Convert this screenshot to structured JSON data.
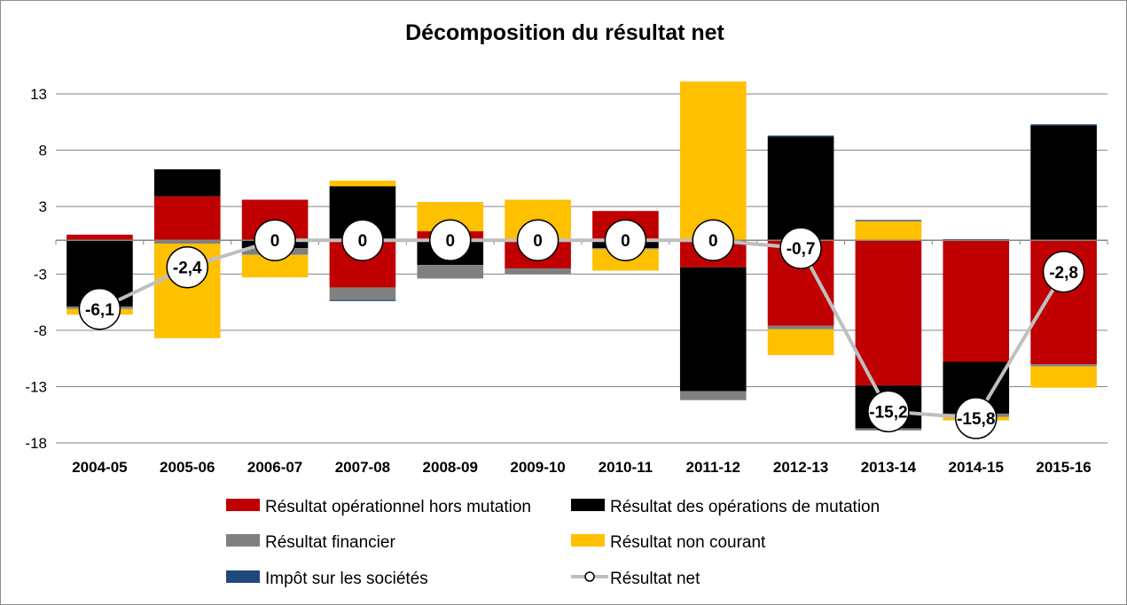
{
  "chart_data": {
    "type": "bar",
    "title": "Décomposition du résultat net",
    "xlabel": "",
    "ylabel": "",
    "ylim": [
      -18,
      15
    ],
    "yticks": [
      13,
      8,
      3,
      -3,
      -8,
      -13,
      -18
    ],
    "grid": true,
    "legend_position": "bottom",
    "categories": [
      "2004-05",
      "2005-06",
      "2006-07",
      "2007-08",
      "2008-09",
      "2009-10",
      "2010-11",
      "2011-12",
      "2012-13",
      "2013-14",
      "2014-15",
      "2015-16"
    ],
    "series": [
      {
        "name": "Résultat opérationnel hors mutation",
        "color": "#c00000",
        "values": [
          0.5,
          3.9,
          3.6,
          -4.2,
          0.8,
          -2.5,
          2.6,
          -2.4,
          -7.6,
          -12.9,
          -10.8,
          -11.0
        ]
      },
      {
        "name": "Résultat des opérations de mutation",
        "color": "#000000",
        "values": [
          -5.9,
          2.4,
          -0.7,
          4.8,
          -2.2,
          0.1,
          -0.7,
          -11.0,
          9.2,
          -3.8,
          -4.6,
          10.2
        ]
      },
      {
        "name": "Résultat financier",
        "color": "#808080",
        "values": [
          -0.2,
          -0.3,
          -0.6,
          -1.1,
          -1.2,
          -0.5,
          -0.1,
          -0.8,
          -0.3,
          -0.2,
          -0.3,
          -0.2
        ]
      },
      {
        "name": "Résultat non courant",
        "color": "#ffc000",
        "values": [
          -0.5,
          -8.4,
          -2.0,
          0.5,
          2.6,
          3.5,
          -1.9,
          14.1,
          -2.3,
          1.7,
          -0.3,
          -1.9
        ]
      },
      {
        "name": "Impôt sur les sociétés",
        "color": "#1f497d",
        "values": [
          0,
          0,
          0,
          -0.1,
          0,
          0,
          0,
          0,
          0.1,
          0.1,
          0.1,
          0.1
        ]
      }
    ],
    "line_series": {
      "name": "Résultat net",
      "color": "#bfbfbf",
      "values": [
        -6.1,
        -2.4,
        0,
        0,
        0,
        0,
        0,
        0,
        -0.7,
        -15.2,
        -15.8,
        -2.8
      ],
      "labels": [
        "-6,1",
        "-2,4",
        "0",
        "0",
        "0",
        "0",
        "0",
        "0",
        "-0,7",
        "-15,2",
        "-15,8",
        "-2,8"
      ]
    },
    "legend_order": [
      "Résultat opérationnel hors mutation",
      "Résultat des opérations de mutation",
      "Résultat financier",
      "Résultat non courant",
      "Impôt sur les sociétés",
      "Résultat net"
    ]
  }
}
